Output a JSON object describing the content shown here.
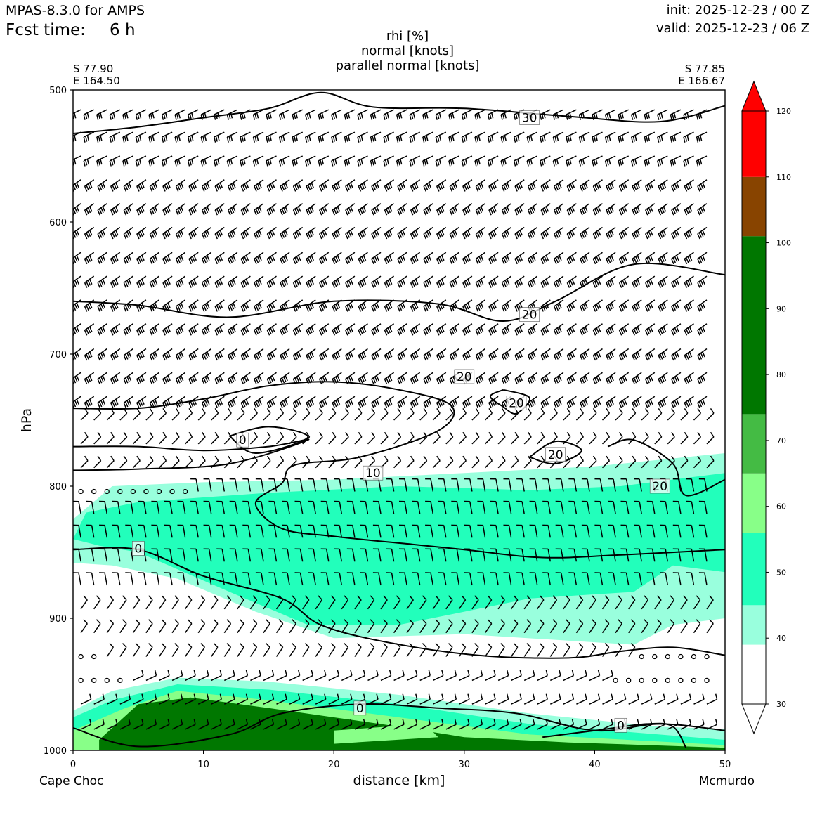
{
  "header": {
    "model": "MPAS-8.3.0 for AMPS",
    "fcst_label": "Fcst time:",
    "fcst_value": "6 h",
    "init": "init: 2025-12-23 / 00 Z",
    "valid": "valid: 2025-12-23 / 06 Z"
  },
  "chart_data": {
    "type": "heatmap",
    "title_lines": [
      "rhi [%]",
      "normal [knots]",
      "parallel normal [knots]"
    ],
    "xlabel": "distance [km]",
    "ylabel": "hPa",
    "xlim": [
      0,
      50
    ],
    "ylim": [
      1000,
      500
    ],
    "x_ticks": [
      0,
      10,
      20,
      30,
      40,
      50
    ],
    "y_ticks": [
      500,
      600,
      700,
      800,
      900,
      1000
    ],
    "start_point": {
      "lat": "S 77.90",
      "lon": "E 164.50",
      "name": "Cape Choc"
    },
    "end_point": {
      "lat": "S 77.85",
      "lon": "E 166.67",
      "name": "Mcmurdo"
    },
    "colorbar": {
      "ticks": [
        30,
        40,
        50,
        60,
        70,
        80,
        90,
        100,
        110,
        120
      ],
      "bins": [
        {
          "from": 30,
          "to": 39,
          "color": "#ffffff"
        },
        {
          "from": 39,
          "to": 45,
          "color": "#99ffdd"
        },
        {
          "from": 45,
          "to": 56,
          "color": "#22ffbb"
        },
        {
          "from": 56,
          "to": 65,
          "color": "#88ff88"
        },
        {
          "from": 65,
          "to": 74,
          "color": "#44bb44"
        },
        {
          "from": 74,
          "to": 101,
          "color": "#007700"
        },
        {
          "from": 101,
          "to": 110,
          "color": "#884400"
        },
        {
          "from": 110,
          "to": 120,
          "color": "#ff0000"
        }
      ]
    },
    "rhi_regions": [
      {
        "color": "#99ffdd",
        "points": [
          [
            0,
            825
          ],
          [
            3,
            800
          ],
          [
            10,
            797
          ],
          [
            20,
            795
          ],
          [
            30,
            790
          ],
          [
            40,
            785
          ],
          [
            50,
            775
          ],
          [
            50,
            900
          ],
          [
            46,
            905
          ],
          [
            43,
            920
          ],
          [
            30,
            912
          ],
          [
            20,
            915
          ],
          [
            14,
            895
          ],
          [
            8,
            870
          ],
          [
            3,
            860
          ],
          [
            0,
            858
          ]
        ]
      },
      {
        "color": "#22ffbb",
        "points": [
          [
            1,
            820
          ],
          [
            5,
            812
          ],
          [
            15,
            805
          ],
          [
            25,
            800
          ],
          [
            35,
            803
          ],
          [
            42,
            800
          ],
          [
            50,
            790
          ],
          [
            50,
            865
          ],
          [
            46,
            860
          ],
          [
            43,
            880
          ],
          [
            35,
            885
          ],
          [
            25,
            905
          ],
          [
            18,
            905
          ],
          [
            12,
            880
          ],
          [
            5,
            850
          ],
          [
            2,
            845
          ],
          [
            0,
            840
          ]
        ]
      },
      {
        "color": "#99ffdd",
        "points": [
          [
            0,
            970
          ],
          [
            3,
            955
          ],
          [
            8,
            945
          ],
          [
            15,
            948
          ],
          [
            25,
            958
          ],
          [
            35,
            972
          ],
          [
            45,
            982
          ],
          [
            50,
            984
          ],
          [
            50,
            1000
          ],
          [
            0,
            1000
          ]
        ]
      },
      {
        "color": "#22ffbb",
        "points": [
          [
            0,
            975
          ],
          [
            3,
            962
          ],
          [
            8,
            950
          ],
          [
            15,
            954
          ],
          [
            25,
            965
          ],
          [
            35,
            980
          ],
          [
            50,
            992
          ],
          [
            50,
            1000
          ],
          [
            0,
            1000
          ]
        ]
      },
      {
        "color": "#88ff88",
        "points": [
          [
            0,
            985
          ],
          [
            4,
            968
          ],
          [
            8,
            955
          ],
          [
            15,
            962
          ],
          [
            25,
            975
          ],
          [
            35,
            988
          ],
          [
            50,
            996
          ],
          [
            50,
            1000
          ],
          [
            0,
            1000
          ]
        ]
      },
      {
        "color": "#007700",
        "points": [
          [
            2,
            992
          ],
          [
            5,
            965
          ],
          [
            9,
            960
          ],
          [
            15,
            968
          ],
          [
            25,
            982
          ],
          [
            30,
            990
          ],
          [
            38,
            994
          ],
          [
            50,
            998
          ],
          [
            50,
            1000
          ],
          [
            2,
            1000
          ]
        ]
      },
      {
        "color": "#88ff88",
        "points": [
          [
            20,
            985
          ],
          [
            27,
            980
          ],
          [
            28,
            990
          ],
          [
            20,
            995
          ]
        ]
      }
    ],
    "contours": [
      {
        "label": "30",
        "label_at": [
          35,
          521
        ],
        "points": [
          [
            0,
            533
          ],
          [
            5,
            528
          ],
          [
            10,
            521
          ],
          [
            15,
            514
          ],
          [
            19,
            502
          ],
          [
            23,
            513
          ],
          [
            30,
            514
          ],
          [
            38,
            520
          ],
          [
            45,
            524
          ],
          [
            50,
            512
          ]
        ]
      },
      {
        "label": "20",
        "label_at": [
          35,
          670
        ],
        "points": [
          [
            0,
            660
          ],
          [
            5,
            663
          ],
          [
            12,
            672
          ],
          [
            20,
            660
          ],
          [
            28,
            662
          ],
          [
            33,
            675
          ],
          [
            37,
            660
          ],
          [
            43,
            632
          ],
          [
            50,
            640
          ]
        ]
      },
      {
        "label": "20",
        "label_at": [
          30,
          717
        ],
        "points": [
          [
            0,
            741
          ],
          [
            5,
            741
          ],
          [
            10,
            734
          ],
          [
            15,
            724
          ],
          [
            20,
            721
          ],
          [
            25,
            727
          ],
          [
            29,
            739
          ],
          [
            28,
            758
          ],
          [
            22,
            778
          ],
          [
            17,
            784
          ],
          [
            16,
            798
          ],
          [
            14,
            813
          ],
          [
            16,
            832
          ],
          [
            20,
            838
          ],
          [
            26,
            844
          ],
          [
            30,
            848
          ],
          [
            36,
            854
          ],
          [
            42,
            852
          ],
          [
            50,
            848
          ]
        ]
      },
      {
        "label": "20",
        "label_at": [
          34,
          737
        ],
        "points": [
          [
            33,
            727
          ],
          [
            35,
            733
          ],
          [
            34,
            745
          ],
          [
            33,
            740
          ],
          [
            32,
            732
          ],
          [
            33,
            727
          ]
        ]
      },
      {
        "label": "20",
        "label_at": [
          37,
          776
        ],
        "points": [
          [
            35,
            778
          ],
          [
            37,
            766
          ],
          [
            39,
            773
          ],
          [
            37,
            783
          ],
          [
            35,
            778
          ]
        ]
      },
      {
        "label": "20",
        "label_at": [
          45,
          800
        ],
        "points": [
          [
            41,
            770
          ],
          [
            43,
            765
          ],
          [
            46,
            783
          ],
          [
            47,
            807
          ],
          [
            50,
            795
          ]
        ]
      },
      {
        "label": "10",
        "label_at": [
          23,
          790
        ],
        "points": [
          [
            0,
            770
          ],
          [
            5,
            770
          ],
          [
            10,
            773
          ],
          [
            15,
            770
          ],
          [
            18,
            765
          ],
          [
            12,
            783
          ],
          [
            5,
            787
          ],
          [
            0,
            788
          ]
        ]
      },
      {
        "label": "0",
        "label_at": [
          13,
          765
        ],
        "points": [
          [
            12,
            762
          ],
          [
            15,
            755
          ],
          [
            18,
            763
          ],
          [
            14,
            775
          ],
          [
            12,
            762
          ]
        ]
      },
      {
        "label": "0",
        "label_at": [
          5,
          847
        ],
        "points": [
          [
            0,
            848
          ],
          [
            5,
            848
          ],
          [
            10,
            868
          ],
          [
            16,
            885
          ],
          [
            19,
            905
          ],
          [
            24,
            918
          ],
          [
            31,
            928
          ],
          [
            38,
            930
          ],
          [
            42,
            925
          ],
          [
            46,
            922
          ],
          [
            50,
            928
          ]
        ]
      },
      {
        "label": "0",
        "label_at": [
          22,
          968
        ],
        "points": [
          [
            0,
            983
          ],
          [
            5,
            997
          ],
          [
            12,
            988
          ],
          [
            16,
            972
          ],
          [
            22,
            965
          ],
          [
            28,
            968
          ],
          [
            34,
            972
          ],
          [
            40,
            985
          ],
          [
            45,
            980
          ],
          [
            50,
            985
          ]
        ]
      },
      {
        "label": "0",
        "label_at": [
          42,
          981
        ],
        "points": [
          [
            36,
            990
          ],
          [
            40,
            985
          ],
          [
            44,
            980
          ],
          [
            46,
            982
          ],
          [
            47,
            998
          ]
        ]
      }
    ],
    "wind_barbs": {
      "x_spacing_km": 1.0,
      "levels_hpa": [
        515,
        532,
        550,
        568,
        586,
        604,
        623,
        641,
        659,
        677,
        696,
        714,
        732,
        750,
        768,
        786,
        804,
        821,
        839,
        857,
        875,
        893,
        911,
        929,
        947,
        965,
        984
      ]
    }
  }
}
